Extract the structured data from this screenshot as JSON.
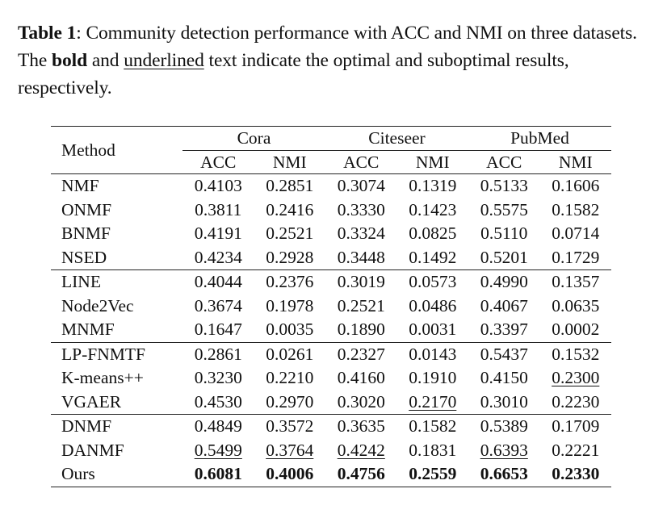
{
  "caption": {
    "label": "Table 1",
    "text_1": ": Community detection performance with ACC and NMI on three datasets. The ",
    "bold_word": "bold",
    "text_2": " and ",
    "underlined_word": "underlined",
    "text_3": " text indicate the optimal and suboptimal results, respectively."
  },
  "table": {
    "method_header": "Method",
    "datasets": [
      "Cora",
      "Citeseer",
      "PubMed"
    ],
    "metrics": [
      "ACC",
      "NMI"
    ],
    "sections": [
      [
        {
          "method": "NMF",
          "values": [
            "0.4103",
            "0.2851",
            "0.3074",
            "0.1319",
            "0.5133",
            "0.1606"
          ]
        },
        {
          "method": "ONMF",
          "values": [
            "0.3811",
            "0.2416",
            "0.3330",
            "0.1423",
            "0.5575",
            "0.1582"
          ]
        },
        {
          "method": "BNMF",
          "values": [
            "0.4191",
            "0.2521",
            "0.3324",
            "0.0825",
            "0.5110",
            "0.0714"
          ]
        },
        {
          "method": "NSED",
          "values": [
            "0.4234",
            "0.2928",
            "0.3448",
            "0.1492",
            "0.5201",
            "0.1729"
          ]
        }
      ],
      [
        {
          "method": "LINE",
          "values": [
            "0.4044",
            "0.2376",
            "0.3019",
            "0.0573",
            "0.4990",
            "0.1357"
          ]
        },
        {
          "method": "Node2Vec",
          "values": [
            "0.3674",
            "0.1978",
            "0.2521",
            "0.0486",
            "0.4067",
            "0.0635"
          ]
        },
        {
          "method": "MNMF",
          "values": [
            "0.1647",
            "0.0035",
            "0.1890",
            "0.0031",
            "0.3397",
            "0.0002"
          ]
        }
      ],
      [
        {
          "method": "LP-FNMTF",
          "values": [
            "0.2861",
            "0.0261",
            "0.2327",
            "0.0143",
            "0.5437",
            "0.1532"
          ]
        },
        {
          "method": "K-means++",
          "values": [
            "0.3230",
            "0.2210",
            "0.4160",
            "0.1910",
            "0.4150",
            "0.2300"
          ],
          "underline": [
            5
          ]
        },
        {
          "method": "VGAER",
          "values": [
            "0.4530",
            "0.2970",
            "0.3020",
            "0.2170",
            "0.3010",
            "0.2230"
          ],
          "underline": [
            3
          ]
        }
      ],
      [
        {
          "method": "DNMF",
          "values": [
            "0.4849",
            "0.3572",
            "0.3635",
            "0.1582",
            "0.5389",
            "0.1709"
          ]
        },
        {
          "method": "DANMF",
          "values": [
            "0.5499",
            "0.3764",
            "0.4242",
            "0.1831",
            "0.6393",
            "0.2221"
          ],
          "underline": [
            0,
            1,
            2,
            4
          ]
        },
        {
          "method": "Ours",
          "values": [
            "0.6081",
            "0.4006",
            "0.4756",
            "0.2559",
            "0.6653",
            "0.2330"
          ],
          "bold": [
            0,
            1,
            2,
            3,
            4,
            5
          ]
        }
      ]
    ]
  }
}
